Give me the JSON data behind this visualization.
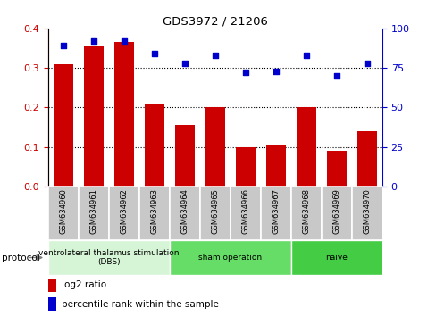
{
  "title": "GDS3972 / 21206",
  "categories": [
    "GSM634960",
    "GSM634961",
    "GSM634962",
    "GSM634963",
    "GSM634964",
    "GSM634965",
    "GSM634966",
    "GSM634967",
    "GSM634968",
    "GSM634969",
    "GSM634970"
  ],
  "log2_ratio": [
    0.31,
    0.355,
    0.365,
    0.21,
    0.155,
    0.2,
    0.1,
    0.105,
    0.2,
    0.09,
    0.14
  ],
  "percentile_rank": [
    89,
    92,
    92,
    84,
    78,
    83,
    72,
    73,
    83,
    70,
    78
  ],
  "bar_color": "#cc0000",
  "scatter_color": "#0000cc",
  "left_yticks": [
    0,
    0.1,
    0.2,
    0.3,
    0.4
  ],
  "right_yticks": [
    0,
    25,
    50,
    75,
    100
  ],
  "ylim_left": [
    0,
    0.4
  ],
  "ylim_right": [
    0,
    100
  ],
  "protocol_groups": [
    {
      "label": "ventrolateral thalamus stimulation\n(DBS)",
      "start": 0,
      "end": 3,
      "color": "#d6f5d6"
    },
    {
      "label": "sham operation",
      "start": 4,
      "end": 7,
      "color": "#66dd66"
    },
    {
      "label": "naive",
      "start": 8,
      "end": 10,
      "color": "#44cc44"
    }
  ],
  "legend_bar_label": "log2 ratio",
  "legend_scatter_label": "percentile rank within the sample",
  "left_axis_color": "#cc0000",
  "right_axis_color": "#0000cc",
  "bg_color": "#ffffff",
  "tick_area_color": "#c8c8c8",
  "protocol_label": "protocol",
  "grid_color": "black",
  "grid_style": "dotted",
  "grid_linewidth": 0.8
}
